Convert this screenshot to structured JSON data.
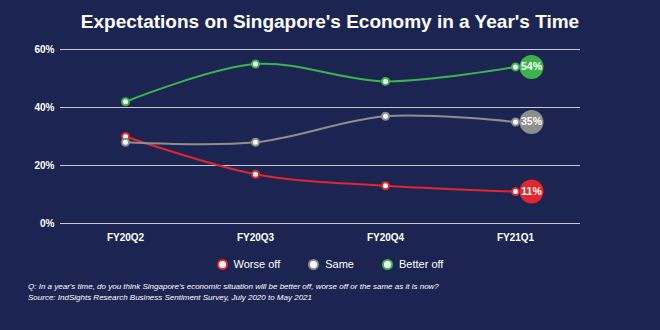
{
  "chart_data": {
    "type": "line",
    "title": "Expectations on Singapore's Economy in a Year's Time",
    "caption": "Q: In a year's time, do you think Singapore's economic situation will be better off, worse off or the same as it is now?",
    "source": "Source: IndSights Research Business Sentiment Survey, July 2020 to May 2021",
    "categories": [
      "FY20Q2",
      "FY20Q3",
      "FY20Q4",
      "FY21Q1"
    ],
    "series": [
      {
        "name": "Worse off",
        "color": "#e3262b",
        "values": [
          30,
          17,
          13,
          11
        ],
        "value_labels": [
          null,
          null,
          null,
          "11%"
        ]
      },
      {
        "name": "Same",
        "color": "#8e8e8e",
        "values": [
          28,
          28,
          37,
          35
        ],
        "value_labels": [
          null,
          null,
          null,
          "35%"
        ]
      },
      {
        "name": "Better off",
        "color": "#3cb44b",
        "values": [
          42,
          55,
          49,
          54
        ],
        "value_labels": [
          null,
          null,
          null,
          "54%"
        ]
      }
    ],
    "ylim": [
      0,
      60
    ],
    "yticks": [
      {
        "value": 0,
        "label": "0%"
      },
      {
        "value": 20,
        "label": "20%"
      },
      {
        "value": 40,
        "label": "40%"
      },
      {
        "value": 60,
        "label": "60%"
      }
    ],
    "grid": true,
    "legend": "bottom",
    "data_labels": true,
    "marker": "circle",
    "line_style": "smooth"
  }
}
